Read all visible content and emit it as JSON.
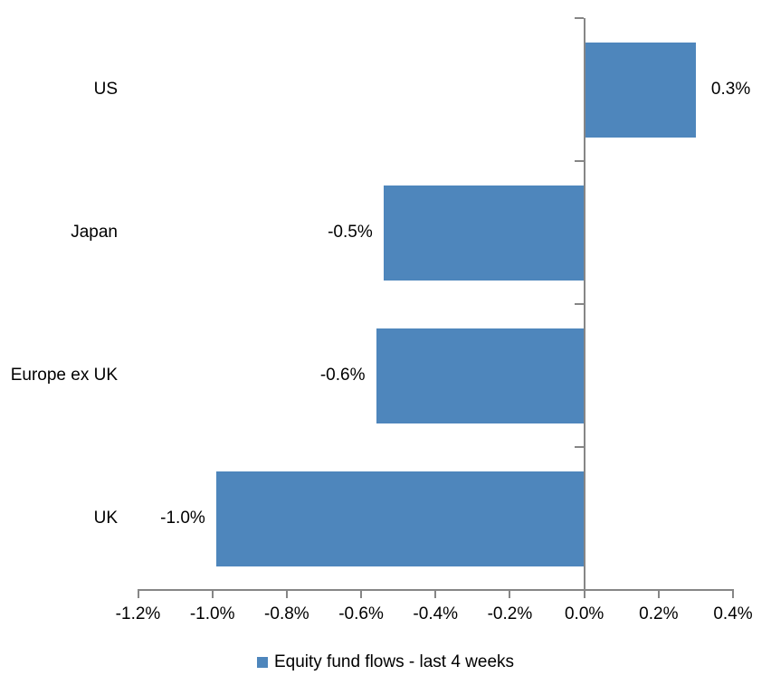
{
  "chart_data": {
    "type": "bar",
    "orientation": "horizontal",
    "title": "",
    "xlabel": "",
    "ylabel": "",
    "categories": [
      "US",
      "Japan",
      "Europe ex UK",
      "UK"
    ],
    "values": [
      0.3,
      -0.5,
      -0.6,
      -1.0
    ],
    "plot_values": [
      0.3,
      -0.54,
      -0.56,
      -0.99
    ],
    "data_labels": [
      "0.3%",
      "-0.5%",
      "-0.6%",
      "-1.0%"
    ],
    "unit": "%",
    "xlim": [
      -1.2,
      0.4
    ],
    "x_ticks": [
      -1.2,
      -1.0,
      -0.8,
      -0.6,
      -0.4,
      -0.2,
      0.0,
      0.2,
      0.4
    ],
    "x_tick_labels": [
      "-1.2%",
      "-1.0%",
      "-0.8%",
      "-0.6%",
      "-0.4%",
      "-0.2%",
      "0.0%",
      "0.2%",
      "0.4%"
    ],
    "grid": false,
    "legend_position": "bottom",
    "legend": {
      "label": "Equity fund flows - last 4 weeks"
    },
    "colors": {
      "bar": "#4E86BC",
      "axis": "#868686",
      "text": "#000000",
      "background": "#FFFFFF"
    }
  }
}
